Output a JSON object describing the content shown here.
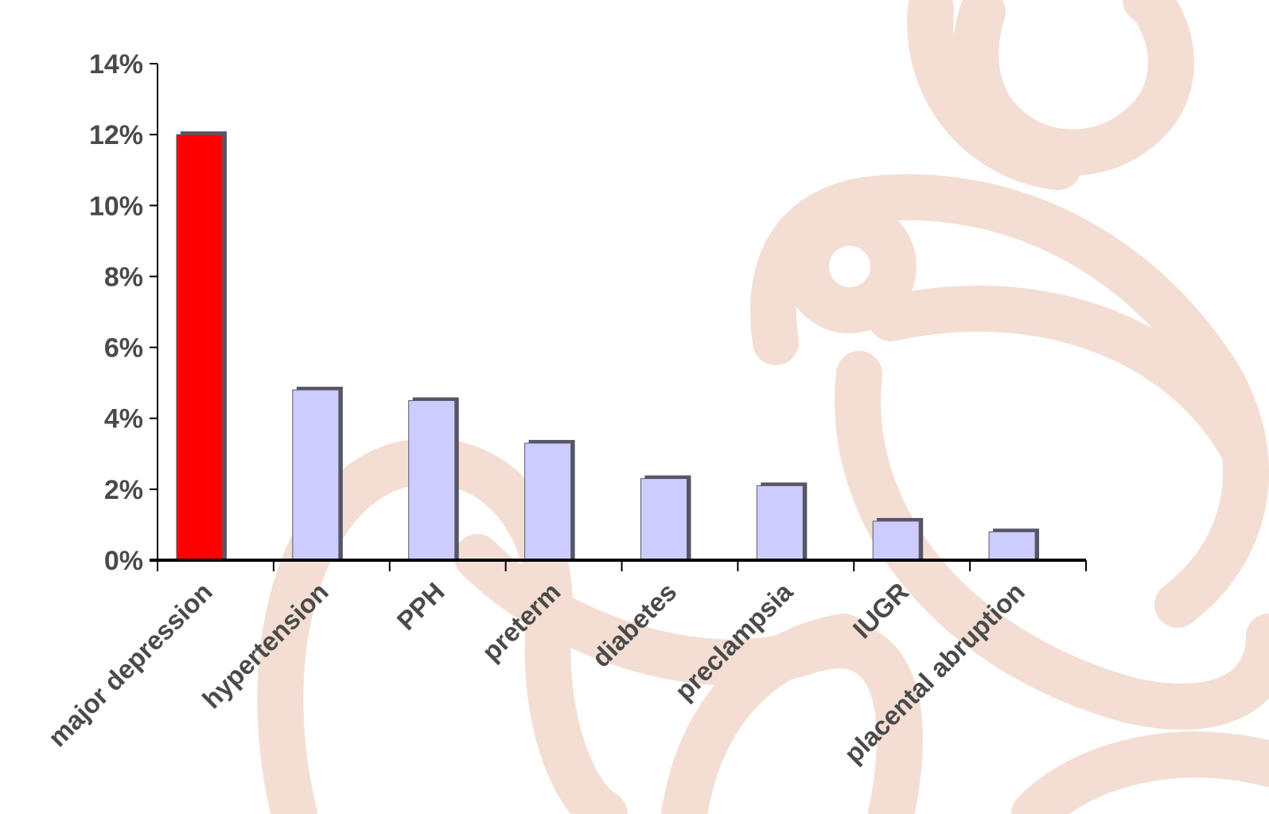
{
  "chart_data": {
    "type": "bar",
    "title": "",
    "xlabel": "",
    "ylabel": "",
    "categories": [
      "major depression",
      "hypertension",
      "PPH",
      "preterm",
      "diabetes",
      "preclampsia",
      "IUGR",
      "placental abruption"
    ],
    "values": [
      12.0,
      4.8,
      4.5,
      3.3,
      2.3,
      2.1,
      1.1,
      0.8
    ],
    "ylim": [
      0,
      14
    ],
    "yticks": [
      0,
      2,
      4,
      6,
      8,
      10,
      12,
      14
    ],
    "ytick_labels": [
      "0%",
      "2%",
      "4%",
      "6%",
      "8%",
      "10%",
      "12%",
      "14%"
    ],
    "grid": false,
    "legend": "none",
    "bar_colors": [
      "#ff0000",
      "#ccccff",
      "#ccccff",
      "#ccccff",
      "#ccccff",
      "#ccccff",
      "#ccccff",
      "#ccccff"
    ],
    "bar_shadow_color": "#555566",
    "axis_color": "#000000",
    "text_color": "#4a4a4a",
    "watermark_color": "#f3dcd2"
  }
}
